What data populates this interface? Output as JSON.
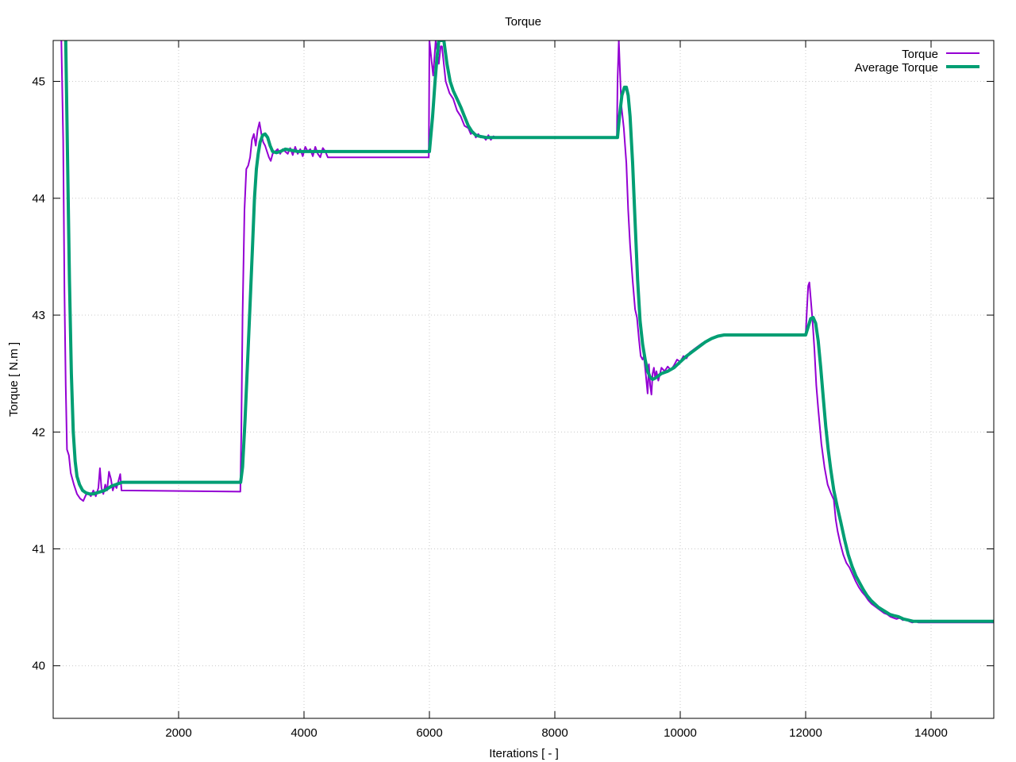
{
  "chart_data": {
    "type": "line",
    "title": "Torque",
    "xlabel": "Iterations [ - ]",
    "ylabel": "Torque [ N.m ]",
    "xlim": [
      0,
      15000
    ],
    "ylim": [
      39.55,
      45.35
    ],
    "xticks": [
      2000,
      4000,
      6000,
      8000,
      10000,
      12000,
      14000
    ],
    "yticks": [
      40,
      41,
      42,
      43,
      44,
      45
    ],
    "grid": true,
    "legend_position": "top-right",
    "series": [
      {
        "name": "Torque",
        "color": "#9400d3",
        "line_width": 2,
        "points": [
          [
            130,
            45.35
          ],
          [
            160,
            44.5
          ],
          [
            180,
            43.2
          ],
          [
            200,
            42.4
          ],
          [
            220,
            41.85
          ],
          [
            250,
            41.8
          ],
          [
            280,
            41.65
          ],
          [
            330,
            41.55
          ],
          [
            380,
            41.47
          ],
          [
            430,
            41.43
          ],
          [
            480,
            41.41
          ],
          [
            520,
            41.46
          ],
          [
            560,
            41.48
          ],
          [
            600,
            41.45
          ],
          [
            640,
            41.5
          ],
          [
            680,
            41.45
          ],
          [
            720,
            41.52
          ],
          [
            745,
            41.69
          ],
          [
            770,
            41.52
          ],
          [
            800,
            41.47
          ],
          [
            830,
            41.55
          ],
          [
            860,
            41.5
          ],
          [
            890,
            41.66
          ],
          [
            920,
            41.6
          ],
          [
            950,
            41.5
          ],
          [
            980,
            41.55
          ],
          [
            1010,
            41.52
          ],
          [
            1040,
            41.58
          ],
          [
            1070,
            41.64
          ],
          [
            1090,
            41.5
          ],
          [
            1100,
            41.5
          ],
          [
            2985,
            41.49
          ],
          [
            3000,
            42.0
          ],
          [
            3020,
            43.0
          ],
          [
            3050,
            43.9
          ],
          [
            3080,
            44.25
          ],
          [
            3110,
            44.28
          ],
          [
            3140,
            44.35
          ],
          [
            3170,
            44.5
          ],
          [
            3200,
            44.55
          ],
          [
            3230,
            44.45
          ],
          [
            3260,
            44.58
          ],
          [
            3290,
            44.65
          ],
          [
            3320,
            44.55
          ],
          [
            3350,
            44.48
          ],
          [
            3380,
            44.45
          ],
          [
            3410,
            44.4
          ],
          [
            3440,
            44.35
          ],
          [
            3470,
            44.32
          ],
          [
            3500,
            44.38
          ],
          [
            3540,
            44.4
          ],
          [
            3580,
            44.42
          ],
          [
            3620,
            44.38
          ],
          [
            3660,
            44.42
          ],
          [
            3700,
            44.4
          ],
          [
            3740,
            44.38
          ],
          [
            3780,
            44.43
          ],
          [
            3820,
            44.37
          ],
          [
            3860,
            44.44
          ],
          [
            3900,
            44.38
          ],
          [
            3940,
            44.42
          ],
          [
            3980,
            44.36
          ],
          [
            4020,
            44.44
          ],
          [
            4060,
            44.4
          ],
          [
            4100,
            44.42
          ],
          [
            4140,
            44.36
          ],
          [
            4180,
            44.44
          ],
          [
            4220,
            44.38
          ],
          [
            4260,
            44.35
          ],
          [
            4300,
            44.43
          ],
          [
            4340,
            44.4
          ],
          [
            4380,
            44.35
          ],
          [
            5990,
            44.35
          ],
          [
            6000,
            45.35
          ],
          [
            6060,
            45.05
          ],
          [
            6100,
            45.35
          ],
          [
            6150,
            45.15
          ],
          [
            6180,
            45.3
          ],
          [
            6200,
            45.3
          ],
          [
            6260,
            45.0
          ],
          [
            6320,
            44.9
          ],
          [
            6380,
            44.85
          ],
          [
            6440,
            44.75
          ],
          [
            6500,
            44.7
          ],
          [
            6560,
            44.62
          ],
          [
            6620,
            44.6
          ],
          [
            6660,
            44.55
          ],
          [
            6700,
            44.57
          ],
          [
            6740,
            44.52
          ],
          [
            6780,
            44.55
          ],
          [
            6820,
            44.52
          ],
          [
            6860,
            44.53
          ],
          [
            6900,
            44.5
          ],
          [
            6940,
            44.54
          ],
          [
            6980,
            44.5
          ],
          [
            7020,
            44.53
          ],
          [
            7060,
            44.52
          ],
          [
            8990,
            44.52
          ],
          [
            9000,
            45.0
          ],
          [
            9020,
            45.35
          ],
          [
            9060,
            44.8
          ],
          [
            9100,
            44.6
          ],
          [
            9140,
            44.3
          ],
          [
            9170,
            43.9
          ],
          [
            9200,
            43.6
          ],
          [
            9240,
            43.3
          ],
          [
            9280,
            43.05
          ],
          [
            9310,
            42.98
          ],
          [
            9340,
            42.8
          ],
          [
            9370,
            42.65
          ],
          [
            9400,
            42.62
          ],
          [
            9420,
            42.65
          ],
          [
            9450,
            42.5
          ],
          [
            9480,
            42.33
          ],
          [
            9500,
            42.58
          ],
          [
            9520,
            42.4
          ],
          [
            9540,
            42.32
          ],
          [
            9560,
            42.5
          ],
          [
            9580,
            42.55
          ],
          [
            9600,
            42.46
          ],
          [
            9620,
            42.52
          ],
          [
            9650,
            42.44
          ],
          [
            9700,
            42.55
          ],
          [
            9750,
            42.52
          ],
          [
            9800,
            42.56
          ],
          [
            9850,
            42.53
          ],
          [
            9900,
            42.57
          ],
          [
            9950,
            42.62
          ],
          [
            10000,
            42.6
          ],
          [
            10050,
            42.65
          ],
          [
            10100,
            42.63
          ],
          [
            10150,
            42.68
          ],
          [
            10200,
            42.7
          ],
          [
            10250,
            42.72
          ],
          [
            10300,
            42.74
          ],
          [
            10350,
            42.76
          ],
          [
            10400,
            42.77
          ],
          [
            10450,
            42.79
          ],
          [
            10500,
            42.8
          ],
          [
            10550,
            42.81
          ],
          [
            10600,
            42.82
          ],
          [
            10650,
            42.83
          ],
          [
            10700,
            42.83
          ],
          [
            12000,
            42.83
          ],
          [
            12020,
            43.05
          ],
          [
            12040,
            43.25
          ],
          [
            12060,
            43.28
          ],
          [
            12080,
            43.15
          ],
          [
            12110,
            42.95
          ],
          [
            12140,
            42.7
          ],
          [
            12170,
            42.4
          ],
          [
            12200,
            42.2
          ],
          [
            12250,
            41.9
          ],
          [
            12300,
            41.7
          ],
          [
            12350,
            41.55
          ],
          [
            12400,
            41.48
          ],
          [
            12450,
            41.42
          ],
          [
            12480,
            41.25
          ],
          [
            12510,
            41.15
          ],
          [
            12550,
            41.05
          ],
          [
            12600,
            40.95
          ],
          [
            12650,
            40.88
          ],
          [
            12700,
            40.84
          ],
          [
            12750,
            40.78
          ],
          [
            12800,
            40.72
          ],
          [
            12850,
            40.67
          ],
          [
            12900,
            40.63
          ],
          [
            12950,
            40.6
          ],
          [
            13000,
            40.56
          ],
          [
            13050,
            40.53
          ],
          [
            13100,
            40.51
          ],
          [
            13150,
            40.49
          ],
          [
            13200,
            40.47
          ],
          [
            13250,
            40.45
          ],
          [
            13300,
            40.44
          ],
          [
            13350,
            40.42
          ],
          [
            13400,
            40.41
          ],
          [
            13450,
            40.4
          ],
          [
            13500,
            40.41
          ],
          [
            13550,
            40.39
          ],
          [
            13600,
            40.4
          ],
          [
            13650,
            40.38
          ],
          [
            13700,
            40.37
          ],
          [
            13750,
            40.38
          ],
          [
            13800,
            40.37
          ],
          [
            13900,
            40.37
          ],
          [
            15000,
            40.37
          ]
        ]
      },
      {
        "name": "Average Torque",
        "color": "#009e73",
        "line_width": 4,
        "points": [
          [
            200,
            45.35
          ],
          [
            230,
            44.3
          ],
          [
            260,
            43.3
          ],
          [
            290,
            42.5
          ],
          [
            320,
            42.0
          ],
          [
            350,
            41.75
          ],
          [
            380,
            41.62
          ],
          [
            420,
            41.55
          ],
          [
            470,
            41.5
          ],
          [
            520,
            41.48
          ],
          [
            580,
            41.47
          ],
          [
            640,
            41.47
          ],
          [
            700,
            41.48
          ],
          [
            760,
            41.49
          ],
          [
            820,
            41.5
          ],
          [
            880,
            41.52
          ],
          [
            940,
            41.54
          ],
          [
            1000,
            41.55
          ],
          [
            1050,
            41.56
          ],
          [
            1100,
            41.57
          ],
          [
            2990,
            41.57
          ],
          [
            3020,
            41.7
          ],
          [
            3060,
            42.1
          ],
          [
            3100,
            42.6
          ],
          [
            3140,
            43.1
          ],
          [
            3180,
            43.6
          ],
          [
            3210,
            44.0
          ],
          [
            3240,
            44.25
          ],
          [
            3270,
            44.38
          ],
          [
            3300,
            44.48
          ],
          [
            3340,
            44.54
          ],
          [
            3380,
            44.55
          ],
          [
            3420,
            44.52
          ],
          [
            3460,
            44.45
          ],
          [
            3500,
            44.4
          ],
          [
            3560,
            44.39
          ],
          [
            3620,
            44.4
          ],
          [
            3700,
            44.42
          ],
          [
            3800,
            44.41
          ],
          [
            3900,
            44.4
          ],
          [
            4000,
            44.4
          ],
          [
            6000,
            44.4
          ],
          [
            6050,
            44.7
          ],
          [
            6090,
            45.0
          ],
          [
            6120,
            45.2
          ],
          [
            6150,
            45.35
          ],
          [
            6190,
            45.35
          ],
          [
            6230,
            45.35
          ],
          [
            6280,
            45.15
          ],
          [
            6330,
            45.0
          ],
          [
            6380,
            44.92
          ],
          [
            6440,
            44.85
          ],
          [
            6500,
            44.78
          ],
          [
            6560,
            44.7
          ],
          [
            6620,
            44.62
          ],
          [
            6680,
            44.57
          ],
          [
            6740,
            44.54
          ],
          [
            6800,
            44.53
          ],
          [
            6900,
            44.52
          ],
          [
            7000,
            44.52
          ],
          [
            9000,
            44.52
          ],
          [
            9030,
            44.7
          ],
          [
            9070,
            44.88
          ],
          [
            9110,
            44.95
          ],
          [
            9140,
            44.95
          ],
          [
            9170,
            44.88
          ],
          [
            9200,
            44.7
          ],
          [
            9240,
            44.3
          ],
          [
            9280,
            43.8
          ],
          [
            9320,
            43.3
          ],
          [
            9360,
            42.95
          ],
          [
            9400,
            42.75
          ],
          [
            9440,
            42.62
          ],
          [
            9480,
            42.52
          ],
          [
            9520,
            42.47
          ],
          [
            9560,
            42.45
          ],
          [
            9600,
            42.46
          ],
          [
            9650,
            42.48
          ],
          [
            9700,
            42.5
          ],
          [
            9800,
            42.52
          ],
          [
            9900,
            42.55
          ],
          [
            10000,
            42.6
          ],
          [
            10100,
            42.65
          ],
          [
            10200,
            42.69
          ],
          [
            10300,
            42.73
          ],
          [
            10400,
            42.77
          ],
          [
            10500,
            42.8
          ],
          [
            10600,
            42.82
          ],
          [
            10700,
            42.83
          ],
          [
            10800,
            42.83
          ],
          [
            12000,
            42.83
          ],
          [
            12040,
            42.9
          ],
          [
            12080,
            42.97
          ],
          [
            12120,
            42.98
          ],
          [
            12160,
            42.93
          ],
          [
            12200,
            42.78
          ],
          [
            12240,
            42.55
          ],
          [
            12280,
            42.3
          ],
          [
            12320,
            42.05
          ],
          [
            12360,
            41.85
          ],
          [
            12400,
            41.68
          ],
          [
            12450,
            41.5
          ],
          [
            12500,
            41.37
          ],
          [
            12560,
            41.23
          ],
          [
            12620,
            41.08
          ],
          [
            12680,
            40.95
          ],
          [
            12740,
            40.85
          ],
          [
            12800,
            40.77
          ],
          [
            12860,
            40.71
          ],
          [
            12920,
            40.65
          ],
          [
            12980,
            40.6
          ],
          [
            13040,
            40.56
          ],
          [
            13100,
            40.53
          ],
          [
            13160,
            40.5
          ],
          [
            13220,
            40.48
          ],
          [
            13280,
            40.46
          ],
          [
            13340,
            40.44
          ],
          [
            13400,
            40.43
          ],
          [
            13480,
            40.42
          ],
          [
            13560,
            40.4
          ],
          [
            13640,
            40.39
          ],
          [
            13720,
            40.38
          ],
          [
            13800,
            40.38
          ],
          [
            13900,
            40.38
          ],
          [
            15000,
            40.38
          ]
        ]
      }
    ]
  }
}
